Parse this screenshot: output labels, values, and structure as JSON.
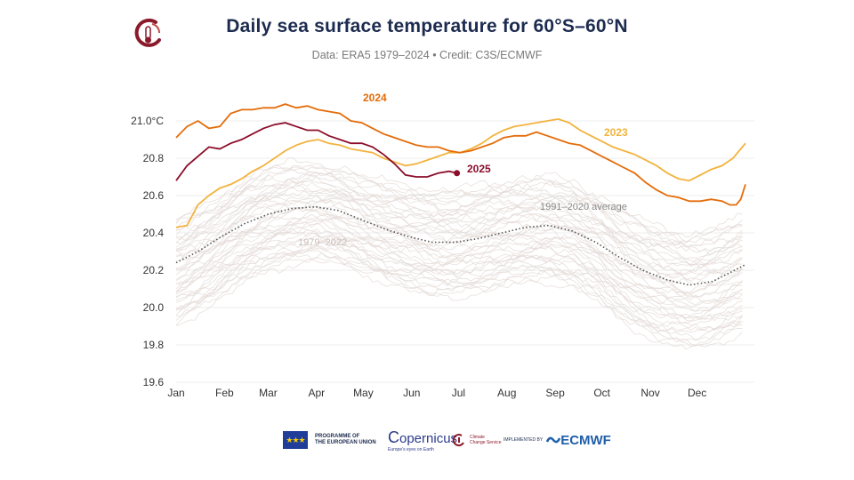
{
  "header": {
    "title": "Daily sea surface temperature for 60°S–60°N",
    "subtitle": "Data: ERA5 1979–2024 • Credit: C3S/ECMWF"
  },
  "footer": {
    "eu_line1": "PROGRAMME OF",
    "eu_line2": "THE EUROPEAN UNION",
    "copernicus": "opernicus",
    "copernicus_sub": "Europe's eyes on Earth",
    "c3s_line1": "Climate",
    "c3s_line2": "Change Service",
    "implemented_by": "IMPLEMENTED BY",
    "ecmwf": "ECMWF"
  },
  "chart_data": {
    "type": "line",
    "title": "Daily sea surface temperature for 60°S–60°N",
    "ylim": [
      19.6,
      21.1
    ],
    "xlim": [
      1,
      366
    ],
    "y_ticks": [
      "21.0°C",
      "20.8",
      "20.6",
      "20.4",
      "20.2",
      "20.0",
      "19.8",
      "19.6"
    ],
    "y_tick_values": [
      21.0,
      20.8,
      20.6,
      20.4,
      20.2,
      20.0,
      19.8,
      19.6
    ],
    "x_ticks": [
      "Jan",
      "Feb",
      "Mar",
      "Apr",
      "May",
      "Jun",
      "Jul",
      "Aug",
      "Sep",
      "Oct",
      "Nov",
      "Dec"
    ],
    "grid": true,
    "annotations": [
      "1979–2022"
    ],
    "colors": {
      "2024": "#e46c0a",
      "2023": "#f2b33d",
      "2025": "#8b0e2a",
      "average": "#555555",
      "historical": "#e3d9d6",
      "grid": "#ececec"
    },
    "series": [
      {
        "name": "2024",
        "x": [
          1,
          8,
          15,
          22,
          29,
          36,
          43,
          50,
          57,
          64,
          71,
          78,
          85,
          92,
          99,
          106,
          113,
          120,
          127,
          134,
          141,
          148,
          155,
          162,
          169,
          176,
          183,
          190,
          197,
          204,
          211,
          218,
          225,
          232,
          239,
          246,
          253,
          260,
          267,
          274,
          281,
          288,
          295,
          302,
          309,
          316,
          323,
          330,
          337,
          344,
          351,
          356,
          360,
          363,
          366
        ],
        "y": [
          20.91,
          20.97,
          21.0,
          20.96,
          20.97,
          21.04,
          21.06,
          21.06,
          21.07,
          21.07,
          21.09,
          21.07,
          21.08,
          21.06,
          21.05,
          21.04,
          21.0,
          20.99,
          20.96,
          20.93,
          20.91,
          20.89,
          20.87,
          20.86,
          20.86,
          20.84,
          20.83,
          20.84,
          20.86,
          20.88,
          20.91,
          20.92,
          20.92,
          20.94,
          20.92,
          20.9,
          20.88,
          20.87,
          20.84,
          20.81,
          20.78,
          20.75,
          20.72,
          20.67,
          20.63,
          20.6,
          20.59,
          20.57,
          20.57,
          20.58,
          20.57,
          20.55,
          20.55,
          20.58,
          20.66
        ]
      },
      {
        "name": "2023",
        "x": [
          1,
          8,
          15,
          22,
          29,
          36,
          43,
          50,
          57,
          64,
          71,
          78,
          85,
          92,
          99,
          106,
          113,
          120,
          127,
          134,
          141,
          148,
          155,
          162,
          169,
          176,
          183,
          190,
          197,
          204,
          211,
          218,
          225,
          232,
          239,
          246,
          253,
          260,
          267,
          274,
          281,
          288,
          295,
          302,
          309,
          316,
          323,
          330,
          337,
          344,
          351,
          358,
          366
        ],
        "y": [
          20.43,
          20.44,
          20.55,
          20.6,
          20.64,
          20.66,
          20.69,
          20.73,
          20.76,
          20.8,
          20.84,
          20.87,
          20.89,
          20.9,
          20.88,
          20.87,
          20.85,
          20.84,
          20.83,
          20.8,
          20.78,
          20.76,
          20.77,
          20.79,
          20.81,
          20.83,
          20.83,
          20.85,
          20.88,
          20.92,
          20.95,
          20.97,
          20.98,
          20.99,
          21.0,
          21.01,
          20.99,
          20.95,
          20.92,
          20.89,
          20.86,
          20.84,
          20.82,
          20.79,
          20.76,
          20.72,
          20.69,
          20.68,
          20.71,
          20.74,
          20.76,
          20.8,
          20.88
        ]
      },
      {
        "name": "2025",
        "x": [
          1,
          8,
          15,
          22,
          29,
          36,
          43,
          50,
          57,
          64,
          71,
          78,
          85,
          92,
          99,
          106,
          113,
          120,
          127,
          134,
          141,
          148,
          155,
          162,
          169,
          176,
          181
        ],
        "y": [
          20.68,
          20.76,
          20.81,
          20.86,
          20.85,
          20.88,
          20.9,
          20.93,
          20.96,
          20.98,
          20.99,
          20.97,
          20.95,
          20.95,
          20.92,
          20.9,
          20.88,
          20.88,
          20.86,
          20.82,
          20.77,
          20.71,
          20.7,
          20.7,
          20.72,
          20.73,
          20.72
        ]
      },
      {
        "name": "1991–2020 average",
        "x": [
          1,
          15,
          30,
          45,
          60,
          75,
          90,
          105,
          120,
          135,
          150,
          165,
          180,
          195,
          210,
          225,
          240,
          255,
          270,
          285,
          300,
          315,
          330,
          345,
          366
        ],
        "y": [
          20.24,
          20.3,
          20.38,
          20.45,
          20.5,
          20.53,
          20.54,
          20.52,
          20.47,
          20.42,
          20.38,
          20.35,
          20.35,
          20.37,
          20.4,
          20.43,
          20.44,
          20.41,
          20.35,
          20.27,
          20.2,
          20.15,
          20.12,
          20.14,
          20.23
        ]
      }
    ],
    "historical_band": {
      "label": "1979–2022",
      "range_years": [
        1979,
        2022
      ],
      "x": [
        1,
        15,
        30,
        45,
        60,
        75,
        90,
        105,
        120,
        135,
        150,
        165,
        180,
        195,
        210,
        225,
        240,
        255,
        270,
        285,
        300,
        315,
        330,
        345,
        366
      ],
      "low": [
        19.85,
        19.92,
        20.0,
        20.08,
        20.14,
        20.18,
        20.2,
        20.18,
        20.14,
        20.08,
        20.03,
        20.0,
        20.0,
        20.02,
        20.05,
        20.08,
        20.09,
        20.05,
        19.98,
        19.88,
        19.8,
        19.74,
        19.72,
        19.74,
        19.82
      ],
      "high": [
        20.5,
        20.55,
        20.62,
        20.72,
        20.78,
        20.8,
        20.8,
        20.78,
        20.73,
        20.7,
        20.68,
        20.66,
        20.66,
        20.68,
        20.7,
        20.72,
        20.73,
        20.7,
        20.64,
        20.56,
        20.5,
        20.45,
        20.42,
        20.45,
        20.52
      ]
    }
  }
}
